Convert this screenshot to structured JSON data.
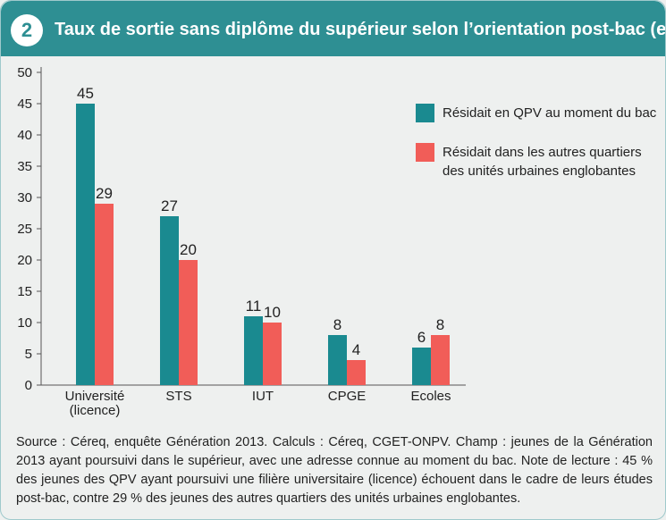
{
  "header": {
    "number": "2",
    "title": "Taux de sortie sans diplôme du supérieur selon l’orientation post-bac (en %)"
  },
  "chart_data": {
    "type": "bar",
    "categories": [
      [
        "Université",
        "(licence)"
      ],
      [
        "STS"
      ],
      [
        "IUT"
      ],
      [
        "CPGE"
      ],
      [
        "Ecoles"
      ]
    ],
    "series": [
      {
        "name": "Résidait en QPV au moment du bac",
        "values": [
          45,
          27,
          11,
          8,
          6
        ],
        "color": "#1a8a90"
      },
      {
        "name": "Résidait dans les autres quartiers des unités urbaines englobantes",
        "name_lines": [
          "Résidait dans les autres quartiers",
          "des unités urbaines englobantes"
        ],
        "values": [
          29,
          20,
          10,
          4,
          8
        ],
        "color": "#f15d58"
      }
    ],
    "ylim": [
      0,
      50
    ],
    "yticks": [
      0,
      5,
      10,
      15,
      20,
      25,
      30,
      35,
      40,
      45,
      50
    ],
    "grid": false,
    "legend": "top-right"
  },
  "source": "Source : Céreq, enquête Génération 2013. Calculs : Céreq, CGET-ONPV. Champ : jeunes de la Génération 2013 ayant poursuivi dans le supérieur, avec une adresse connue au moment du bac. Note de lecture : 45 % des jeunes des QPV ayant poursuivi une filière universitaire (licence) échouent dans le cadre de leurs études post-bac, contre 29 % des jeunes des autres quartiers des unités urbaines englobantes."
}
